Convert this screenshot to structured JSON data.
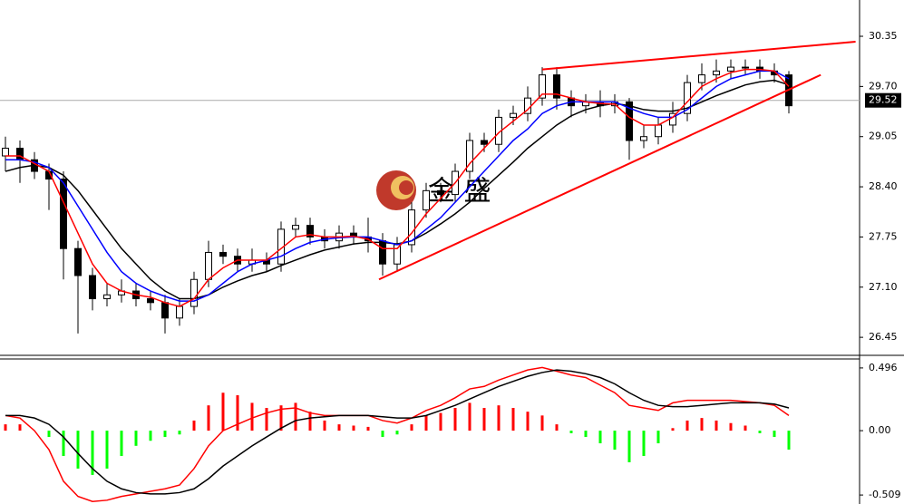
{
  "chart_data": [
    {
      "type": "candlestick",
      "watermark": "金 盛",
      "ylim": [
        26.24,
        30.82
      ],
      "yticks": [
        30.35,
        {
          "value": 29.7,
          "label": "29.70"
        },
        29.05,
        {
          "value": 28.4,
          "label": "28.40"
        },
        27.75,
        {
          "value": 27.1,
          "label": "27.10"
        },
        26.45
      ],
      "last_price": 29.52,
      "open": [
        28.8,
        28.9,
        28.75,
        28.6,
        28.5,
        27.6,
        27.25,
        26.95,
        27.0,
        27.05,
        26.95,
        26.9,
        26.7,
        26.85,
        27.2,
        27.55,
        27.5,
        27.4,
        27.45,
        27.4,
        27.85,
        27.9,
        27.75,
        27.7,
        27.8,
        27.75,
        27.7,
        27.4,
        27.65,
        28.1,
        28.35,
        28.3,
        28.6,
        29.0,
        28.95,
        29.3,
        29.35,
        29.55,
        29.85,
        29.55,
        29.45,
        29.5,
        29.45,
        29.5,
        29.0,
        29.05,
        29.2,
        29.35,
        29.75,
        29.85,
        29.9,
        29.95,
        29.95,
        29.9,
        29.85
      ],
      "high": [
        29.05,
        29.0,
        28.85,
        28.7,
        28.6,
        27.7,
        27.35,
        27.15,
        27.2,
        27.15,
        27.05,
        27.0,
        26.95,
        27.3,
        27.7,
        27.65,
        27.6,
        27.6,
        27.55,
        27.95,
        28.0,
        28.0,
        27.85,
        27.9,
        27.9,
        28.0,
        27.8,
        27.75,
        28.2,
        28.45,
        28.45,
        28.7,
        29.1,
        29.1,
        29.4,
        29.45,
        29.7,
        29.95,
        29.95,
        29.65,
        29.6,
        29.65,
        29.6,
        29.55,
        29.2,
        29.3,
        29.5,
        29.85,
        30.0,
        30.05,
        30.05,
        30.05,
        30.05,
        30.0,
        29.9
      ],
      "low": [
        28.6,
        28.45,
        28.5,
        28.1,
        27.2,
        26.5,
        26.8,
        26.85,
        26.9,
        26.85,
        26.8,
        26.5,
        26.6,
        26.75,
        27.1,
        27.4,
        27.3,
        27.3,
        27.3,
        27.3,
        27.75,
        27.65,
        27.6,
        27.6,
        27.65,
        27.55,
        27.25,
        27.3,
        27.55,
        28.0,
        28.2,
        28.2,
        28.5,
        28.85,
        28.85,
        29.2,
        29.25,
        29.45,
        29.4,
        29.3,
        29.35,
        29.3,
        29.35,
        28.75,
        28.9,
        28.95,
        29.1,
        29.25,
        29.65,
        29.75,
        29.8,
        29.85,
        29.8,
        29.75,
        29.35
      ],
      "close": [
        28.9,
        28.75,
        28.6,
        28.5,
        27.6,
        27.25,
        26.95,
        27.0,
        27.05,
        26.95,
        26.9,
        26.7,
        26.85,
        27.2,
        27.55,
        27.5,
        27.4,
        27.45,
        27.4,
        27.85,
        27.9,
        27.75,
        27.7,
        27.8,
        27.75,
        27.7,
        27.4,
        27.65,
        28.1,
        28.35,
        28.3,
        28.6,
        29.0,
        28.95,
        29.3,
        29.35,
        29.55,
        29.85,
        29.55,
        29.45,
        29.5,
        29.45,
        29.5,
        29.0,
        29.05,
        29.2,
        29.35,
        29.75,
        29.85,
        29.9,
        29.95,
        29.95,
        29.9,
        29.85,
        29.45
      ],
      "series": [
        {
          "color": "#000000",
          "values": [
            28.6,
            28.65,
            28.68,
            28.65,
            28.55,
            28.35,
            28.1,
            27.85,
            27.6,
            27.4,
            27.2,
            27.05,
            26.95,
            26.95,
            27.0,
            27.1,
            27.18,
            27.25,
            27.3,
            27.38,
            27.45,
            27.52,
            27.58,
            27.62,
            27.66,
            27.68,
            27.68,
            27.66,
            27.7,
            27.8,
            27.92,
            28.05,
            28.2,
            28.38,
            28.55,
            28.72,
            28.9,
            29.05,
            29.2,
            29.32,
            29.4,
            29.45,
            29.48,
            29.45,
            29.4,
            29.38,
            29.38,
            29.42,
            29.5,
            29.58,
            29.65,
            29.72,
            29.76,
            29.78,
            29.72
          ]
        },
        {
          "color": "#0000ff",
          "values": [
            28.75,
            28.75,
            28.72,
            28.65,
            28.45,
            28.15,
            27.85,
            27.55,
            27.3,
            27.15,
            27.05,
            26.98,
            26.92,
            26.92,
            27.0,
            27.15,
            27.3,
            27.4,
            27.45,
            27.5,
            27.6,
            27.68,
            27.72,
            27.74,
            27.75,
            27.75,
            27.7,
            27.65,
            27.7,
            27.85,
            28.0,
            28.2,
            28.4,
            28.6,
            28.8,
            29.0,
            29.15,
            29.35,
            29.45,
            29.5,
            29.5,
            29.5,
            29.5,
            29.42,
            29.35,
            29.3,
            29.3,
            29.4,
            29.55,
            29.7,
            29.8,
            29.85,
            29.9,
            29.9,
            29.8
          ]
        },
        {
          "color": "#ff0000",
          "values": [
            28.8,
            28.8,
            28.7,
            28.6,
            28.2,
            27.8,
            27.4,
            27.15,
            27.05,
            27.0,
            26.97,
            26.9,
            26.85,
            26.95,
            27.2,
            27.35,
            27.45,
            27.45,
            27.45,
            27.6,
            27.75,
            27.78,
            27.75,
            27.75,
            27.76,
            27.72,
            27.6,
            27.6,
            27.8,
            28.05,
            28.25,
            28.45,
            28.7,
            28.9,
            29.1,
            29.25,
            29.4,
            29.6,
            29.6,
            29.55,
            29.5,
            29.48,
            29.47,
            29.3,
            29.2,
            29.2,
            29.3,
            29.5,
            29.7,
            29.8,
            29.88,
            29.92,
            29.92,
            29.9,
            29.7
          ]
        }
      ],
      "trendlines": [
        {
          "color": "#ff0000",
          "from": [
            37,
            29.92
          ],
          "to": [
            58.6,
            30.28
          ]
        },
        {
          "color": "#ff0000",
          "from": [
            25.75,
            27.2
          ],
          "to": [
            56.2,
            29.85
          ]
        }
      ]
    },
    {
      "type": "macd",
      "ylim": [
        -0.58,
        0.567
      ],
      "yticks": [
        0.496,
        {
          "value": 0,
          "label": "0.00"
        },
        -0.509
      ],
      "histogram": {
        "pos_color": "#ff0000",
        "neg_color": "#00ff00",
        "values": [
          0.05,
          0.05,
          0.0,
          -0.05,
          -0.2,
          -0.3,
          -0.35,
          -0.3,
          -0.2,
          -0.12,
          -0.08,
          -0.05,
          -0.03,
          0.08,
          0.2,
          0.3,
          0.28,
          0.22,
          0.18,
          0.2,
          0.22,
          0.15,
          0.08,
          0.05,
          0.04,
          0.03,
          -0.05,
          -0.03,
          0.05,
          0.12,
          0.14,
          0.18,
          0.22,
          0.18,
          0.2,
          0.18,
          0.15,
          0.12,
          0.05,
          -0.02,
          -0.05,
          -0.1,
          -0.15,
          -0.25,
          -0.2,
          -0.1,
          0.02,
          0.08,
          0.1,
          0.08,
          0.06,
          0.04,
          -0.02,
          -0.05,
          -0.15
        ]
      },
      "series": [
        {
          "color": "#ff0000",
          "values": [
            0.12,
            0.1,
            0.0,
            -0.15,
            -0.4,
            -0.52,
            -0.56,
            -0.55,
            -0.52,
            -0.5,
            -0.48,
            -0.46,
            -0.43,
            -0.3,
            -0.12,
            0.0,
            0.05,
            0.1,
            0.14,
            0.17,
            0.18,
            0.14,
            0.12,
            0.12,
            0.12,
            0.12,
            0.08,
            0.06,
            0.1,
            0.16,
            0.2,
            0.26,
            0.33,
            0.35,
            0.4,
            0.44,
            0.48,
            0.5,
            0.47,
            0.44,
            0.42,
            0.36,
            0.3,
            0.2,
            0.18,
            0.16,
            0.22,
            0.24,
            0.24,
            0.24,
            0.24,
            0.23,
            0.22,
            0.2,
            0.12
          ]
        },
        {
          "color": "#000000",
          "values": [
            0.12,
            0.12,
            0.1,
            0.05,
            -0.05,
            -0.18,
            -0.3,
            -0.4,
            -0.46,
            -0.49,
            -0.5,
            -0.5,
            -0.49,
            -0.46,
            -0.38,
            -0.28,
            -0.2,
            -0.12,
            -0.05,
            0.02,
            0.08,
            0.1,
            0.11,
            0.12,
            0.12,
            0.12,
            0.11,
            0.1,
            0.1,
            0.12,
            0.16,
            0.2,
            0.25,
            0.3,
            0.35,
            0.39,
            0.43,
            0.46,
            0.48,
            0.47,
            0.45,
            0.42,
            0.37,
            0.3,
            0.24,
            0.2,
            0.19,
            0.19,
            0.2,
            0.21,
            0.22,
            0.22,
            0.22,
            0.21,
            0.18
          ]
        }
      ]
    }
  ]
}
